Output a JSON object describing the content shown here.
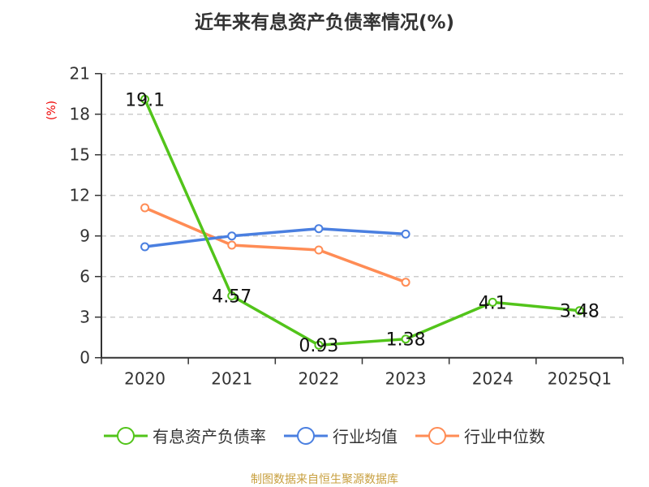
{
  "chart_data": {
    "type": "line",
    "title": "近年来有息资产负债率情况(%)",
    "ylabel": "(%)",
    "categories": [
      "2020",
      "2021",
      "2022",
      "2023",
      "2024",
      "2025Q1"
    ],
    "ylim": [
      0,
      21
    ],
    "yticks": [
      0,
      3,
      6,
      9,
      12,
      15,
      18,
      21
    ],
    "grid": true,
    "legend_position": "bottom",
    "series": [
      {
        "name": "有息资产负债率",
        "color": "#52c41a",
        "values": [
          19.1,
          4.57,
          0.93,
          1.38,
          4.1,
          3.48
        ],
        "labels": [
          "19.1",
          "4.57",
          "0.93",
          "1.38",
          "4.1",
          "3.48"
        ]
      },
      {
        "name": "行业均值",
        "color": "#4a7fe0",
        "values": [
          8.2,
          9.0,
          9.54,
          9.14,
          null,
          null
        ]
      },
      {
        "name": "行业中位数",
        "color": "#ff8c55",
        "values": [
          11.08,
          8.32,
          7.96,
          5.58,
          null,
          null
        ]
      }
    ]
  },
  "source": "制图数据来自恒生聚源数据库"
}
